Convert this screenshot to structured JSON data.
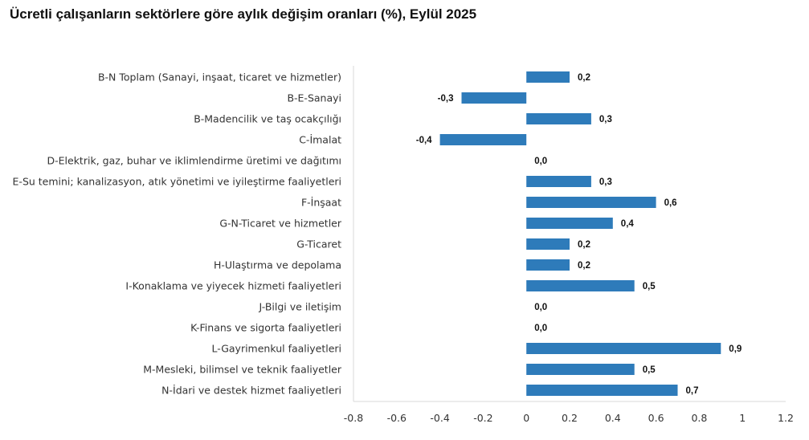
{
  "chart_data": {
    "type": "bar",
    "orientation": "horizontal",
    "title": "Ücretli çalışanların sektörlere göre aylık değişim oranları (%), Eylül 2025",
    "categories": [
      "B-N Toplam (Sanayi, inşaat, ticaret ve hizmetler)",
      "B-E-Sanayi",
      "B-Madencilik ve taş ocakçılığı",
      "C-İmalat",
      "D-Elektrik, gaz, buhar ve iklimlendirme üretimi ve dağıtımı",
      "E-Su temini; kanalizasyon, atık yönetimi ve iyileştirme faaliyetleri",
      "F-İnşaat",
      "G-N-Ticaret ve hizmetler",
      "G-Ticaret",
      "H-Ulaştırma ve depolama",
      "I-Konaklama ve yiyecek hizmeti faaliyetleri",
      "J-Bilgi ve iletişim",
      "K-Finans ve sigorta faaliyetleri",
      "L-Gayrimenkul faaliyetleri",
      "M-Mesleki, bilimsel ve teknik faaliyetler",
      "N-İdari ve destek hizmet faaliyetleri"
    ],
    "values": [
      0.2,
      -0.3,
      0.3,
      -0.4,
      0.0,
      0.3,
      0.6,
      0.4,
      0.2,
      0.2,
      0.5,
      0.0,
      0.0,
      0.9,
      0.5,
      0.7
    ],
    "data_labels": [
      "0,2",
      "-0,3",
      "0,3",
      "-0,4",
      "0,0",
      "0,3",
      "0,6",
      "0,4",
      "0,2",
      "0,2",
      "0,5",
      "0,0",
      "0,0",
      "0,9",
      "0,5",
      "0,7"
    ],
    "xlim": [
      -0.8,
      1.2
    ],
    "xticks": [
      "-0.8",
      "-0.6",
      "-0.4",
      "-0.2",
      "0",
      "0.2",
      "0.4",
      "0.6",
      "0.8",
      "1",
      "1.2"
    ],
    "grid": false,
    "legend": "none",
    "bar_color": "#2e7bba"
  }
}
